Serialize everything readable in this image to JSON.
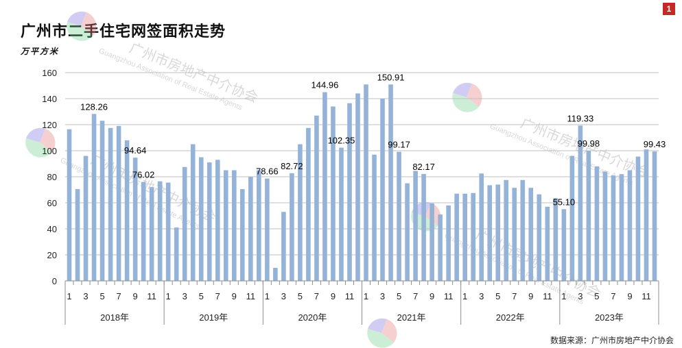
{
  "page_badge": "1",
  "source": "数据来源：广州市房地产中介协会",
  "watermark": {
    "cn": "广州市房地产中介协会",
    "en": "Guangzhou Association of Real Estate Agents"
  },
  "chart_data": {
    "type": "bar",
    "title": "广州市二手住宅网签面积走势",
    "ylabel": "万平方米",
    "xlabel": "",
    "ylim": [
      0,
      160
    ],
    "yticks": [
      0,
      20,
      40,
      60,
      80,
      100,
      120,
      140,
      160
    ],
    "grid": true,
    "bar_color": "#95b3d7",
    "years": [
      "2018年",
      "2019年",
      "2020年",
      "2021年",
      "2022年",
      "2023年"
    ],
    "month_tick_labels": [
      "1",
      "3",
      "5",
      "7",
      "9",
      "11"
    ],
    "values": [
      116.5,
      70.5,
      96.0,
      128.26,
      123.0,
      117.5,
      119.0,
      108.0,
      94.64,
      76.02,
      72.0,
      76.5,
      75.5,
      41.0,
      87.5,
      105.0,
      95.0,
      91.0,
      93.0,
      85.0,
      85.0,
      70.5,
      80.0,
      85.0,
      78.66,
      10.0,
      53.0,
      82.72,
      105.0,
      117.5,
      127.0,
      144.96,
      134.0,
      102.35,
      136.5,
      144.0,
      150.91,
      97.0,
      140.0,
      150.91,
      99.17,
      75.0,
      84.5,
      82.17,
      59.5,
      51.0,
      58.0,
      67.0,
      67.0,
      67.5,
      82.5,
      73.5,
      74.0,
      77.5,
      71.5,
      77.5,
      71.5,
      66.5,
      57.0,
      63.5,
      55.1,
      96.0,
      119.33,
      99.98,
      88.0,
      84.0,
      81.0,
      82.0,
      85.0,
      95.5,
      101.0,
      99.43
    ],
    "data_labels": [
      {
        "index": 3,
        "text": "128.26"
      },
      {
        "index": 8,
        "text": "94.64"
      },
      {
        "index": 9,
        "text": "76.02"
      },
      {
        "index": 24,
        "text": "78.66"
      },
      {
        "index": 27,
        "text": "82.72"
      },
      {
        "index": 31,
        "text": "144.96"
      },
      {
        "index": 33,
        "text": "102.35"
      },
      {
        "index": 39,
        "text": "150.91"
      },
      {
        "index": 40,
        "text": "99.17"
      },
      {
        "index": 43,
        "text": "82.17"
      },
      {
        "index": 60,
        "text": "55.10"
      },
      {
        "index": 62,
        "text": "119.33"
      },
      {
        "index": 63,
        "text": "99.98"
      },
      {
        "index": 71,
        "text": "99.43"
      }
    ]
  }
}
